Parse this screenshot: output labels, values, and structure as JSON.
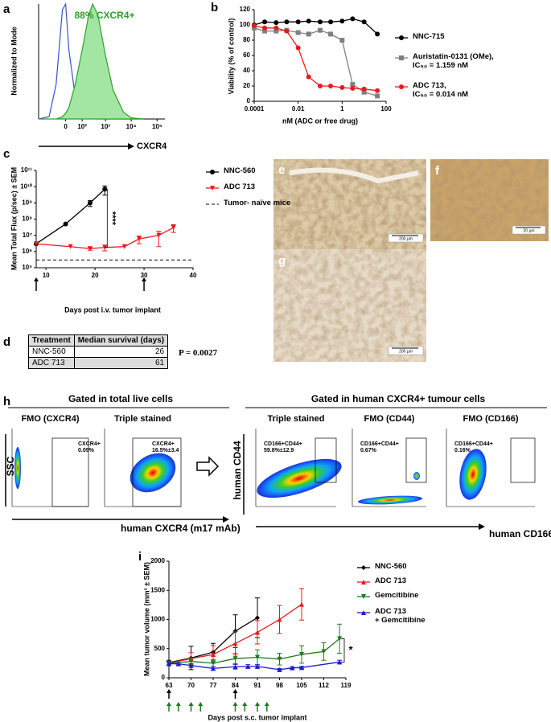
{
  "panel_labels": [
    "a",
    "b",
    "c",
    "d",
    "e",
    "f",
    "g",
    "h",
    "i"
  ],
  "chart_data": [
    {
      "type": "area",
      "annotation": "88% CXCR4+",
      "ylabel": "Normalized to Mode",
      "xlabel": "CXCR4",
      "xscale": "symlog",
      "xlim": [
        -300,
        200000
      ],
      "ylim": [
        0,
        100
      ],
      "xticks": [
        0,
        {
          "value": 100,
          "label": "10²"
        },
        {
          "value": 1000,
          "label": "10³"
        },
        {
          "value": 10000,
          "label": "10⁴"
        },
        {
          "value": 100000,
          "label": "10⁵"
        }
      ],
      "x": [
        -300,
        -100,
        -40,
        -10,
        0,
        10,
        40,
        100,
        200,
        300,
        500,
        1000,
        2000,
        5000,
        10000,
        30000
      ],
      "series": [
        {
          "color": "#3a4fd6",
          "fill": false,
          "values": [
            0,
            2,
            30,
            95,
            100,
            60,
            20,
            8,
            3,
            1,
            0,
            0,
            0,
            0,
            0,
            0
          ]
        },
        {
          "color": "#2ca02c",
          "fill": true,
          "fill_color": "#a3e6a3",
          "values": [
            0,
            0,
            0,
            2,
            5,
            10,
            30,
            60,
            90,
            100,
            90,
            55,
            25,
            6,
            1,
            0
          ]
        }
      ]
    },
    {
      "type": "line",
      "xlabel": "nM (ADC or free drug)",
      "ylabel": "Viability (% of control)",
      "xscale": "log",
      "xlim": [
        0.0001,
        100
      ],
      "ylim": [
        0,
        120
      ],
      "xticks": [
        0.0001,
        0.01,
        1,
        100
      ],
      "yticks": [
        0,
        20,
        40,
        60,
        80,
        100,
        120
      ],
      "x": [
        0.0001,
        0.0003,
        0.001,
        0.003,
        0.01,
        0.03,
        0.1,
        0.3,
        1,
        3,
        10,
        40
      ],
      "series": [
        {
          "name": "NNC-715",
          "color": "#000000",
          "marker": "circle",
          "values": [
            100,
            104,
            103,
            104,
            104,
            105,
            104,
            104,
            105,
            108,
            104,
            88
          ]
        },
        {
          "name": "Auristatin-0131 (OMe),\nIC₅₀ = 1.159 nM",
          "color": "#808080",
          "marker": "square",
          "values": [
            96,
            92,
            92,
            93,
            90,
            88,
            93,
            88,
            80,
            22,
            12,
            7
          ]
        },
        {
          "name": "ADC 713,\n IC₅₀ = 0.014 nM",
          "color": "#e8191d",
          "marker": "circle",
          "values": [
            99,
            96,
            96,
            92,
            70,
            32,
            20,
            20,
            18,
            17,
            16,
            14
          ]
        }
      ]
    },
    {
      "type": "line",
      "xlabel": "Days post i.v. tumor implant",
      "ylabel": "Mean Total Flux (p/sec) ± SEM",
      "yscale": "log",
      "xlim": [
        8,
        40
      ],
      "ylim": [
        100000,
        100000000000
      ],
      "xticks": [
        10,
        20,
        30,
        40
      ],
      "yticks": [
        {
          "value": 100000,
          "label": "10⁵"
        },
        {
          "value": 1000000,
          "label": "10⁶"
        },
        {
          "value": 10000000,
          "label": "10⁷"
        },
        {
          "value": 100000000,
          "label": "10⁸"
        },
        {
          "value": 1000000000,
          "label": "10⁹"
        },
        {
          "value": 10000000000,
          "label": "10¹⁰"
        },
        {
          "value": 100000000000,
          "label": "10¹¹"
        }
      ],
      "annotation": "****",
      "reference_line": {
        "name": "Tumor- naïve mice",
        "value": 300000
      },
      "dose_arrows": [
        {
          "color": "#000000",
          "x": [
            8,
            30
          ]
        }
      ],
      "series": [
        {
          "name": "NNC-560",
          "color": "#000000",
          "marker": "circle",
          "x": [
            8,
            14,
            19,
            22
          ],
          "values": [
            3000000,
            50000000,
            1000000000,
            7000000000
          ],
          "errors": [
            null,
            null,
            400000000,
            4000000000
          ]
        },
        {
          "name": "ADC 713",
          "color": "#e8191d",
          "marker": "triangle-down",
          "x": [
            8,
            15,
            19,
            22,
            26,
            29,
            33,
            36
          ],
          "values": [
            3000000,
            2000000,
            1500000,
            1800000,
            2000000,
            6000000,
            10000000,
            30000000
          ],
          "errors": [
            null,
            null,
            300000,
            700000,
            null,
            3000000,
            8000000,
            15000000
          ]
        }
      ]
    },
    {
      "type": "line",
      "xlabel": "Days post s.c. tumor implant",
      "ylabel": "Mean tumor volume (mm³ ± SEM)",
      "xlim": [
        63,
        119
      ],
      "ylim": [
        0,
        2000
      ],
      "xticks": [
        63,
        70,
        77,
        84,
        91,
        98,
        105,
        112,
        119
      ],
      "yticks": [
        0,
        500,
        1000,
        1500,
        2000
      ],
      "annotation": "*",
      "dose_arrows": [
        {
          "color": "#000000",
          "x": [
            63,
            84
          ]
        },
        {
          "color": "#1f7a1f",
          "x": [
            63,
            66,
            70,
            73,
            84,
            87,
            91,
            94
          ]
        }
      ],
      "series": [
        {
          "name": "NNC-560",
          "color": "#000000",
          "marker": "diamond",
          "x": [
            63,
            70,
            77,
            84,
            91
          ],
          "values": [
            260,
            340,
            440,
            800,
            1030
          ],
          "errors": [
            40,
            200,
            150,
            280,
            340
          ]
        },
        {
          "name": "ADC 713",
          "color": "#e8191d",
          "marker": "triangle-up",
          "x": [
            63,
            70,
            77,
            84,
            91,
            98,
            105
          ],
          "values": [
            250,
            330,
            400,
            590,
            780,
            1000,
            1260
          ],
          "errors": [
            30,
            100,
            150,
            200,
            200,
            240,
            270
          ]
        },
        {
          "name": "Gemcitibine",
          "color": "#1f7a1f",
          "marker": "triangle-down",
          "x": [
            63,
            70,
            77,
            84,
            91,
            98,
            105,
            112,
            117
          ],
          "values": [
            250,
            280,
            250,
            330,
            350,
            320,
            400,
            450,
            670
          ],
          "errors": [
            30,
            60,
            60,
            90,
            130,
            100,
            150,
            150,
            250
          ]
        },
        {
          "name": "ADC 713\n+ Gemcitibine",
          "color": "#1a1ad0",
          "marker": "triangle-up",
          "x": [
            63,
            66,
            70,
            77,
            84,
            88,
            91,
            98,
            102,
            105,
            117
          ],
          "values": [
            240,
            240,
            210,
            160,
            190,
            195,
            195,
            140,
            170,
            175,
            270
          ],
          "errors": [
            30,
            20,
            30,
            30,
            40,
            30,
            30,
            20,
            20,
            20,
            30
          ]
        }
      ]
    }
  ],
  "table": {
    "columns": [
      "Treatment",
      "Median survival (days)"
    ],
    "rows": [
      [
        "NNC-560",
        26
      ],
      [
        "ADC 713",
        61
      ]
    ],
    "p_value": "P = 0.0027"
  },
  "images": [
    {
      "scale_bar": "200 µm"
    },
    {
      "scale_bar": "20 µm"
    },
    {
      "scale_bar": "200 µm"
    }
  ],
  "flow": {
    "groups": [
      {
        "title": "Gated in total live cells"
      },
      {
        "title": "Gated in human CXCR4+ tumour cells"
      }
    ],
    "plots": [
      {
        "title": "FMO (CXCR4)",
        "gate": "CXCR4+\n0.09%"
      },
      {
        "title": "Triple stained",
        "gate": "CXCR4+\n16.5%±3.4"
      },
      {
        "title": "Triple stained",
        "gate": "CD166+CD44+\n59.8%±12.9"
      },
      {
        "title": "FMO (CD44)",
        "gate": "CD166+CD44+\n0.67%"
      },
      {
        "title": "FMO (CD166)",
        "gate": "CD166+CD44+\n0.16%"
      }
    ],
    "axis_labels": {
      "y_left": "SSC",
      "x_left": "human CXCR4 (m17 mAb)",
      "y_right": "human CD44",
      "x_right": "human CD166"
    }
  }
}
